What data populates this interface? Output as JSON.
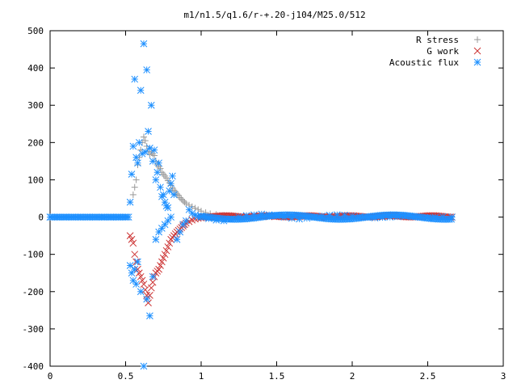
{
  "chart_data": {
    "type": "scatter",
    "title": "m1/n1.5/q1.6/r-+.20-j104/M25.0/512",
    "xlim": [
      0,
      3
    ],
    "ylim": [
      -400,
      500
    ],
    "xticks": [
      0,
      0.5,
      1,
      1.5,
      2,
      2.5,
      3
    ],
    "xtick_labels": [
      "0",
      "0.5",
      "1",
      "1.5",
      "2",
      "2.5",
      "3"
    ],
    "yticks": [
      -400,
      -300,
      -200,
      -100,
      0,
      100,
      200,
      300,
      400,
      500
    ],
    "ytick_labels": [
      "-400",
      "-300",
      "-200",
      "-100",
      "0",
      "100",
      "200",
      "300",
      "400",
      "500"
    ],
    "grid": false,
    "legend_position": "top-right",
    "series": [
      {
        "name": "R stress",
        "marker": "plus",
        "color": "#999999",
        "points": [
          [
            0.55,
            60
          ],
          [
            0.56,
            80
          ],
          [
            0.57,
            100
          ],
          [
            0.58,
            140
          ],
          [
            0.59,
            160
          ],
          [
            0.6,
            180
          ],
          [
            0.61,
            200
          ],
          [
            0.62,
            215
          ],
          [
            0.63,
            205
          ],
          [
            0.64,
            190
          ],
          [
            0.65,
            175
          ],
          [
            0.66,
            168
          ],
          [
            0.67,
            175
          ],
          [
            0.68,
            170
          ],
          [
            0.69,
            165
          ],
          [
            0.7,
            150
          ],
          [
            0.71,
            140
          ],
          [
            0.72,
            135
          ],
          [
            0.73,
            130
          ],
          [
            0.74,
            120
          ],
          [
            0.75,
            115
          ],
          [
            0.76,
            110
          ],
          [
            0.77,
            105
          ],
          [
            0.78,
            98
          ],
          [
            0.79,
            92
          ],
          [
            0.8,
            85
          ],
          [
            0.81,
            78
          ],
          [
            0.82,
            72
          ],
          [
            0.83,
            68
          ],
          [
            0.84,
            62
          ],
          [
            0.85,
            58
          ],
          [
            0.86,
            52
          ],
          [
            0.87,
            48
          ],
          [
            0.88,
            44
          ],
          [
            0.89,
            40
          ],
          [
            0.9,
            36
          ],
          [
            0.92,
            32
          ],
          [
            0.94,
            28
          ],
          [
            0.96,
            24
          ],
          [
            0.98,
            20
          ],
          [
            1.0,
            16
          ],
          [
            1.03,
            12
          ],
          [
            1.06,
            9
          ],
          [
            1.1,
            7
          ],
          [
            1.15,
            5
          ],
          [
            1.2,
            4
          ],
          [
            1.3,
            3
          ],
          [
            1.4,
            3
          ],
          [
            1.5,
            2
          ],
          [
            1.6,
            2
          ],
          [
            1.7,
            2
          ],
          [
            1.8,
            1
          ],
          [
            1.9,
            1
          ],
          [
            2.0,
            1
          ],
          [
            2.1,
            1
          ],
          [
            2.2,
            1
          ],
          [
            2.3,
            1
          ],
          [
            2.4,
            0
          ],
          [
            2.5,
            0
          ],
          [
            2.6,
            0
          ],
          [
            2.66,
            0
          ]
        ]
      },
      {
        "name": "G work",
        "marker": "cross",
        "color": "#cc3333",
        "points": [
          [
            0.53,
            -50
          ],
          [
            0.54,
            -60
          ],
          [
            0.55,
            -70
          ],
          [
            0.56,
            -100
          ],
          [
            0.57,
            -120
          ],
          [
            0.58,
            -140
          ],
          [
            0.59,
            -150
          ],
          [
            0.6,
            -160
          ],
          [
            0.61,
            -170
          ],
          [
            0.62,
            -180
          ],
          [
            0.63,
            -195
          ],
          [
            0.64,
            -210
          ],
          [
            0.65,
            -230
          ],
          [
            0.66,
            -210
          ],
          [
            0.67,
            -190
          ],
          [
            0.68,
            -175
          ],
          [
            0.69,
            -160
          ],
          [
            0.7,
            -150
          ],
          [
            0.71,
            -145
          ],
          [
            0.72,
            -140
          ],
          [
            0.73,
            -130
          ],
          [
            0.74,
            -120
          ],
          [
            0.75,
            -110
          ],
          [
            0.76,
            -100
          ],
          [
            0.77,
            -90
          ],
          [
            0.78,
            -80
          ],
          [
            0.79,
            -70
          ],
          [
            0.8,
            -60
          ],
          [
            0.81,
            -55
          ],
          [
            0.82,
            -50
          ],
          [
            0.83,
            -45
          ],
          [
            0.84,
            -40
          ],
          [
            0.85,
            -36
          ],
          [
            0.86,
            -32
          ],
          [
            0.87,
            -28
          ],
          [
            0.88,
            -24
          ],
          [
            0.89,
            -20
          ],
          [
            0.9,
            -16
          ],
          [
            0.92,
            -12
          ],
          [
            0.94,
            -8
          ],
          [
            0.96,
            -5
          ],
          [
            0.98,
            -3
          ],
          [
            1.0,
            -2
          ],
          [
            1.05,
            -1
          ],
          [
            1.1,
            2
          ],
          [
            1.15,
            3
          ],
          [
            1.2,
            2
          ],
          [
            1.25,
            1
          ],
          [
            1.3,
            2
          ],
          [
            1.35,
            3
          ],
          [
            1.4,
            2
          ],
          [
            1.45,
            1
          ],
          [
            1.5,
            2
          ],
          [
            1.55,
            3
          ],
          [
            1.6,
            2
          ],
          [
            1.65,
            1
          ],
          [
            1.7,
            2
          ],
          [
            1.75,
            2
          ],
          [
            1.8,
            1
          ],
          [
            1.85,
            2
          ],
          [
            1.9,
            2
          ],
          [
            1.95,
            1
          ],
          [
            2.0,
            2
          ],
          [
            2.05,
            2
          ],
          [
            2.1,
            1
          ],
          [
            2.15,
            2
          ],
          [
            2.2,
            1
          ],
          [
            2.25,
            1
          ],
          [
            2.3,
            2
          ],
          [
            2.35,
            1
          ],
          [
            2.4,
            1
          ],
          [
            2.45,
            1
          ],
          [
            2.5,
            1
          ],
          [
            2.55,
            1
          ],
          [
            2.6,
            1
          ],
          [
            2.66,
            0
          ]
        ]
      },
      {
        "name": "Acoustic flux",
        "marker": "star",
        "color": "#1e90ff",
        "points": [
          [
            0.53,
            40
          ],
          [
            0.54,
            115
          ],
          [
            0.55,
            190
          ],
          [
            0.56,
            370
          ],
          [
            0.57,
            160
          ],
          [
            0.58,
            145
          ],
          [
            0.59,
            200
          ],
          [
            0.6,
            340
          ],
          [
            0.61,
            170
          ],
          [
            0.62,
            465
          ],
          [
            0.63,
            175
          ],
          [
            0.64,
            395
          ],
          [
            0.65,
            230
          ],
          [
            0.66,
            185
          ],
          [
            0.67,
            300
          ],
          [
            0.68,
            150
          ],
          [
            0.69,
            180
          ],
          [
            0.7,
            100
          ],
          [
            0.71,
            120
          ],
          [
            0.72,
            145
          ],
          [
            0.73,
            80
          ],
          [
            0.74,
            55
          ],
          [
            0.75,
            60
          ],
          [
            0.76,
            40
          ],
          [
            0.77,
            30
          ],
          [
            0.78,
            25
          ],
          [
            0.79,
            70
          ],
          [
            0.8,
            90
          ],
          [
            0.81,
            110
          ],
          [
            0.82,
            60
          ],
          [
            0.53,
            -130
          ],
          [
            0.54,
            -150
          ],
          [
            0.55,
            -170
          ],
          [
            0.56,
            -140
          ],
          [
            0.57,
            -180
          ],
          [
            0.58,
            -120
          ],
          [
            0.6,
            -200
          ],
          [
            0.62,
            -400
          ],
          [
            0.64,
            -220
          ],
          [
            0.66,
            -265
          ],
          [
            0.68,
            -160
          ],
          [
            0.7,
            -60
          ],
          [
            0.72,
            -40
          ],
          [
            0.74,
            -30
          ],
          [
            0.76,
            -20
          ],
          [
            0.78,
            -10
          ],
          [
            0.8,
            0
          ],
          [
            0.84,
            -60
          ],
          [
            0.86,
            -40
          ],
          [
            0.88,
            -20
          ],
          [
            0.9,
            -10
          ],
          [
            0.92,
            20
          ],
          [
            0.94,
            10
          ],
          [
            0.96,
            5
          ],
          [
            0.98,
            2
          ],
          [
            1.0,
            0
          ],
          [
            1.05,
            -4
          ],
          [
            1.1,
            -8
          ],
          [
            1.15,
            -10
          ],
          [
            1.2,
            -5
          ],
          [
            1.25,
            0
          ],
          [
            1.3,
            4
          ],
          [
            1.35,
            6
          ],
          [
            1.4,
            8
          ],
          [
            1.45,
            6
          ],
          [
            1.5,
            4
          ],
          [
            1.55,
            0
          ],
          [
            1.6,
            -3
          ],
          [
            1.65,
            -5
          ],
          [
            1.7,
            -3
          ],
          [
            1.75,
            0
          ],
          [
            1.8,
            3
          ],
          [
            1.85,
            5
          ],
          [
            1.9,
            6
          ],
          [
            1.95,
            5
          ],
          [
            2.0,
            3
          ],
          [
            2.05,
            1
          ],
          [
            2.1,
            -1
          ],
          [
            2.15,
            -2
          ],
          [
            2.2,
            -1
          ],
          [
            2.25,
            0
          ],
          [
            2.3,
            1
          ],
          [
            2.35,
            2
          ],
          [
            2.4,
            1
          ],
          [
            2.45,
            0
          ],
          [
            2.5,
            -1
          ],
          [
            2.55,
            0
          ],
          [
            2.6,
            1
          ],
          [
            2.66,
            0
          ],
          [
            0.0,
            0
          ],
          [
            0.05,
            0
          ],
          [
            0.1,
            0
          ],
          [
            0.15,
            0
          ],
          [
            0.2,
            0
          ],
          [
            0.25,
            0
          ],
          [
            0.3,
            0
          ],
          [
            0.35,
            0
          ],
          [
            0.4,
            0
          ],
          [
            0.45,
            0
          ],
          [
            0.5,
            0
          ],
          [
            0.52,
            0
          ]
        ]
      }
    ]
  }
}
